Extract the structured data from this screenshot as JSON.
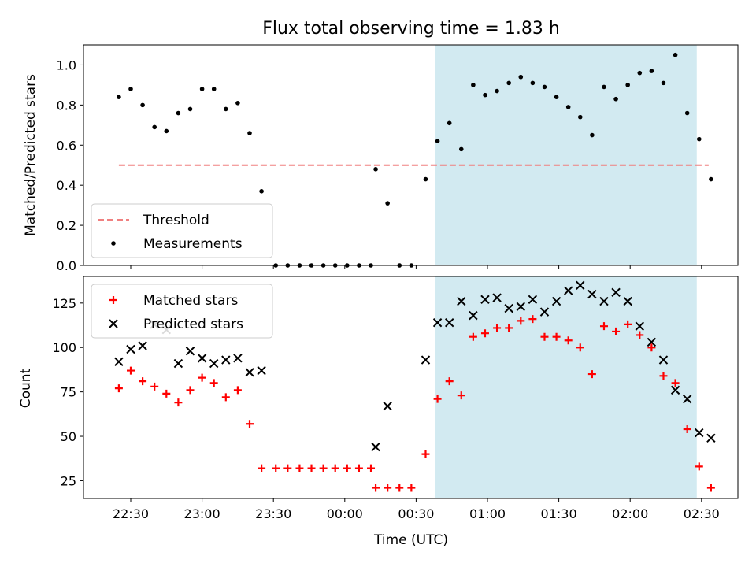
{
  "chart_data": {
    "type": "scatter",
    "title": "Flux total observing time = 1.83 h",
    "xlabel": "Time (UTC)",
    "x_tick_labels": [
      "22:30",
      "23:00",
      "23:30",
      "00:00",
      "00:30",
      "01:00",
      "01:30",
      "02:00",
      "02:30"
    ],
    "shaded_interval": [
      "00:38",
      "02:28"
    ],
    "shade_color": "#add8e6",
    "panels": [
      {
        "ylabel": "Matched/Predicted stars",
        "ylim": [
          0,
          1.1
        ],
        "y_ticks": [
          "0.0",
          "0.2",
          "0.4",
          "0.6",
          "0.8",
          "1.0"
        ],
        "legend_position": "lower-left",
        "series": [
          {
            "name": "Threshold",
            "style": "dashed-line",
            "color": "#f08080",
            "points": [
              [
                "22:25",
                0.5
              ],
              [
                "02:33",
                0.5
              ]
            ]
          },
          {
            "name": "Measurements",
            "style": "dot",
            "color": "#000000",
            "points": [
              [
                "22:25",
                0.84
              ],
              [
                "22:30",
                0.88
              ],
              [
                "22:35",
                0.8
              ],
              [
                "22:40",
                0.69
              ],
              [
                "22:45",
                0.67
              ],
              [
                "22:50",
                0.76
              ],
              [
                "22:55",
                0.78
              ],
              [
                "23:00",
                0.88
              ],
              [
                "23:05",
                0.88
              ],
              [
                "23:10",
                0.78
              ],
              [
                "23:15",
                0.81
              ],
              [
                "23:20",
                0.66
              ],
              [
                "23:25",
                0.37
              ],
              [
                "23:31",
                0.0
              ],
              [
                "23:36",
                0.0
              ],
              [
                "23:41",
                0.0
              ],
              [
                "23:46",
                0.0
              ],
              [
                "23:51",
                0.0
              ],
              [
                "23:56",
                0.0
              ],
              [
                "00:01",
                0.0
              ],
              [
                "00:06",
                0.0
              ],
              [
                "00:11",
                0.0
              ],
              [
                "00:13",
                0.48
              ],
              [
                "00:18",
                0.31
              ],
              [
                "00:23",
                0.0
              ],
              [
                "00:28",
                0.0
              ],
              [
                "00:34",
                0.43
              ],
              [
                "00:39",
                0.62
              ],
              [
                "00:44",
                0.71
              ],
              [
                "00:49",
                0.58
              ],
              [
                "00:54",
                0.9
              ],
              [
                "00:59",
                0.85
              ],
              [
                "01:04",
                0.87
              ],
              [
                "01:09",
                0.91
              ],
              [
                "01:14",
                0.94
              ],
              [
                "01:19",
                0.91
              ],
              [
                "01:24",
                0.89
              ],
              [
                "01:29",
                0.84
              ],
              [
                "01:34",
                0.79
              ],
              [
                "01:39",
                0.74
              ],
              [
                "01:44",
                0.65
              ],
              [
                "01:49",
                0.89
              ],
              [
                "01:54",
                0.83
              ],
              [
                "01:59",
                0.9
              ],
              [
                "02:04",
                0.96
              ],
              [
                "02:09",
                0.97
              ],
              [
                "02:14",
                0.91
              ],
              [
                "02:19",
                1.05
              ],
              [
                "02:24",
                0.76
              ],
              [
                "02:29",
                0.63
              ],
              [
                "02:34",
                0.43
              ]
            ]
          }
        ]
      },
      {
        "ylabel": "Count",
        "ylim": [
          15,
          140
        ],
        "y_ticks": [
          "25",
          "50",
          "75",
          "100",
          "125"
        ],
        "legend_position": "upper-left",
        "series": [
          {
            "name": "Matched stars",
            "style": "plus",
            "color": "#ff0000",
            "points": [
              [
                "22:25",
                77
              ],
              [
                "22:30",
                87
              ],
              [
                "22:35",
                81
              ],
              [
                "22:40",
                78
              ],
              [
                "22:45",
                74
              ],
              [
                "22:50",
                69
              ],
              [
                "22:55",
                76
              ],
              [
                "23:00",
                83
              ],
              [
                "23:05",
                80
              ],
              [
                "23:10",
                72
              ],
              [
                "23:15",
                76
              ],
              [
                "23:20",
                57
              ],
              [
                "23:25",
                32
              ],
              [
                "23:31",
                32
              ],
              [
                "23:36",
                32
              ],
              [
                "23:41",
                32
              ],
              [
                "23:46",
                32
              ],
              [
                "23:51",
                32
              ],
              [
                "23:56",
                32
              ],
              [
                "00:01",
                32
              ],
              [
                "00:06",
                32
              ],
              [
                "00:11",
                32
              ],
              [
                "00:13",
                21
              ],
              [
                "00:18",
                21
              ],
              [
                "00:23",
                21
              ],
              [
                "00:28",
                21
              ],
              [
                "00:34",
                40
              ],
              [
                "00:39",
                71
              ],
              [
                "00:44",
                81
              ],
              [
                "00:49",
                73
              ],
              [
                "00:54",
                106
              ],
              [
                "00:59",
                108
              ],
              [
                "01:04",
                111
              ],
              [
                "01:09",
                111
              ],
              [
                "01:14",
                115
              ],
              [
                "01:19",
                116
              ],
              [
                "01:24",
                106
              ],
              [
                "01:29",
                106
              ],
              [
                "01:34",
                104
              ],
              [
                "01:39",
                100
              ],
              [
                "01:44",
                85
              ],
              [
                "01:49",
                112
              ],
              [
                "01:54",
                109
              ],
              [
                "01:59",
                113
              ],
              [
                "02:04",
                107
              ],
              [
                "02:09",
                100
              ],
              [
                "02:14",
                84
              ],
              [
                "02:19",
                80
              ],
              [
                "02:24",
                54
              ],
              [
                "02:29",
                33
              ],
              [
                "02:34",
                21
              ]
            ]
          },
          {
            "name": "Predicted stars",
            "style": "cross",
            "color": "#000000",
            "points": [
              [
                "22:25",
                92
              ],
              [
                "22:30",
                99
              ],
              [
                "22:35",
                101
              ],
              [
                "22:40",
                113
              ],
              [
                "22:45",
                110
              ],
              [
                "22:50",
                91
              ],
              [
                "22:55",
                98
              ],
              [
                "23:00",
                94
              ],
              [
                "23:05",
                91
              ],
              [
                "23:10",
                93
              ],
              [
                "23:15",
                94
              ],
              [
                "23:20",
                86
              ],
              [
                "23:25",
                87
              ],
              [
                "00:13",
                44
              ],
              [
                "00:18",
                67
              ],
              [
                "00:34",
                93
              ],
              [
                "00:39",
                114
              ],
              [
                "00:44",
                114
              ],
              [
                "00:49",
                126
              ],
              [
                "00:54",
                118
              ],
              [
                "00:59",
                127
              ],
              [
                "01:04",
                128
              ],
              [
                "01:09",
                122
              ],
              [
                "01:14",
                123
              ],
              [
                "01:19",
                127
              ],
              [
                "01:24",
                120
              ],
              [
                "01:29",
                126
              ],
              [
                "01:34",
                132
              ],
              [
                "01:39",
                135
              ],
              [
                "01:44",
                130
              ],
              [
                "01:49",
                126
              ],
              [
                "01:54",
                131
              ],
              [
                "01:59",
                126
              ],
              [
                "02:04",
                112
              ],
              [
                "02:09",
                103
              ],
              [
                "02:14",
                93
              ],
              [
                "02:19",
                76
              ],
              [
                "02:24",
                71
              ],
              [
                "02:29",
                52
              ],
              [
                "02:34",
                49
              ]
            ]
          }
        ]
      }
    ]
  }
}
